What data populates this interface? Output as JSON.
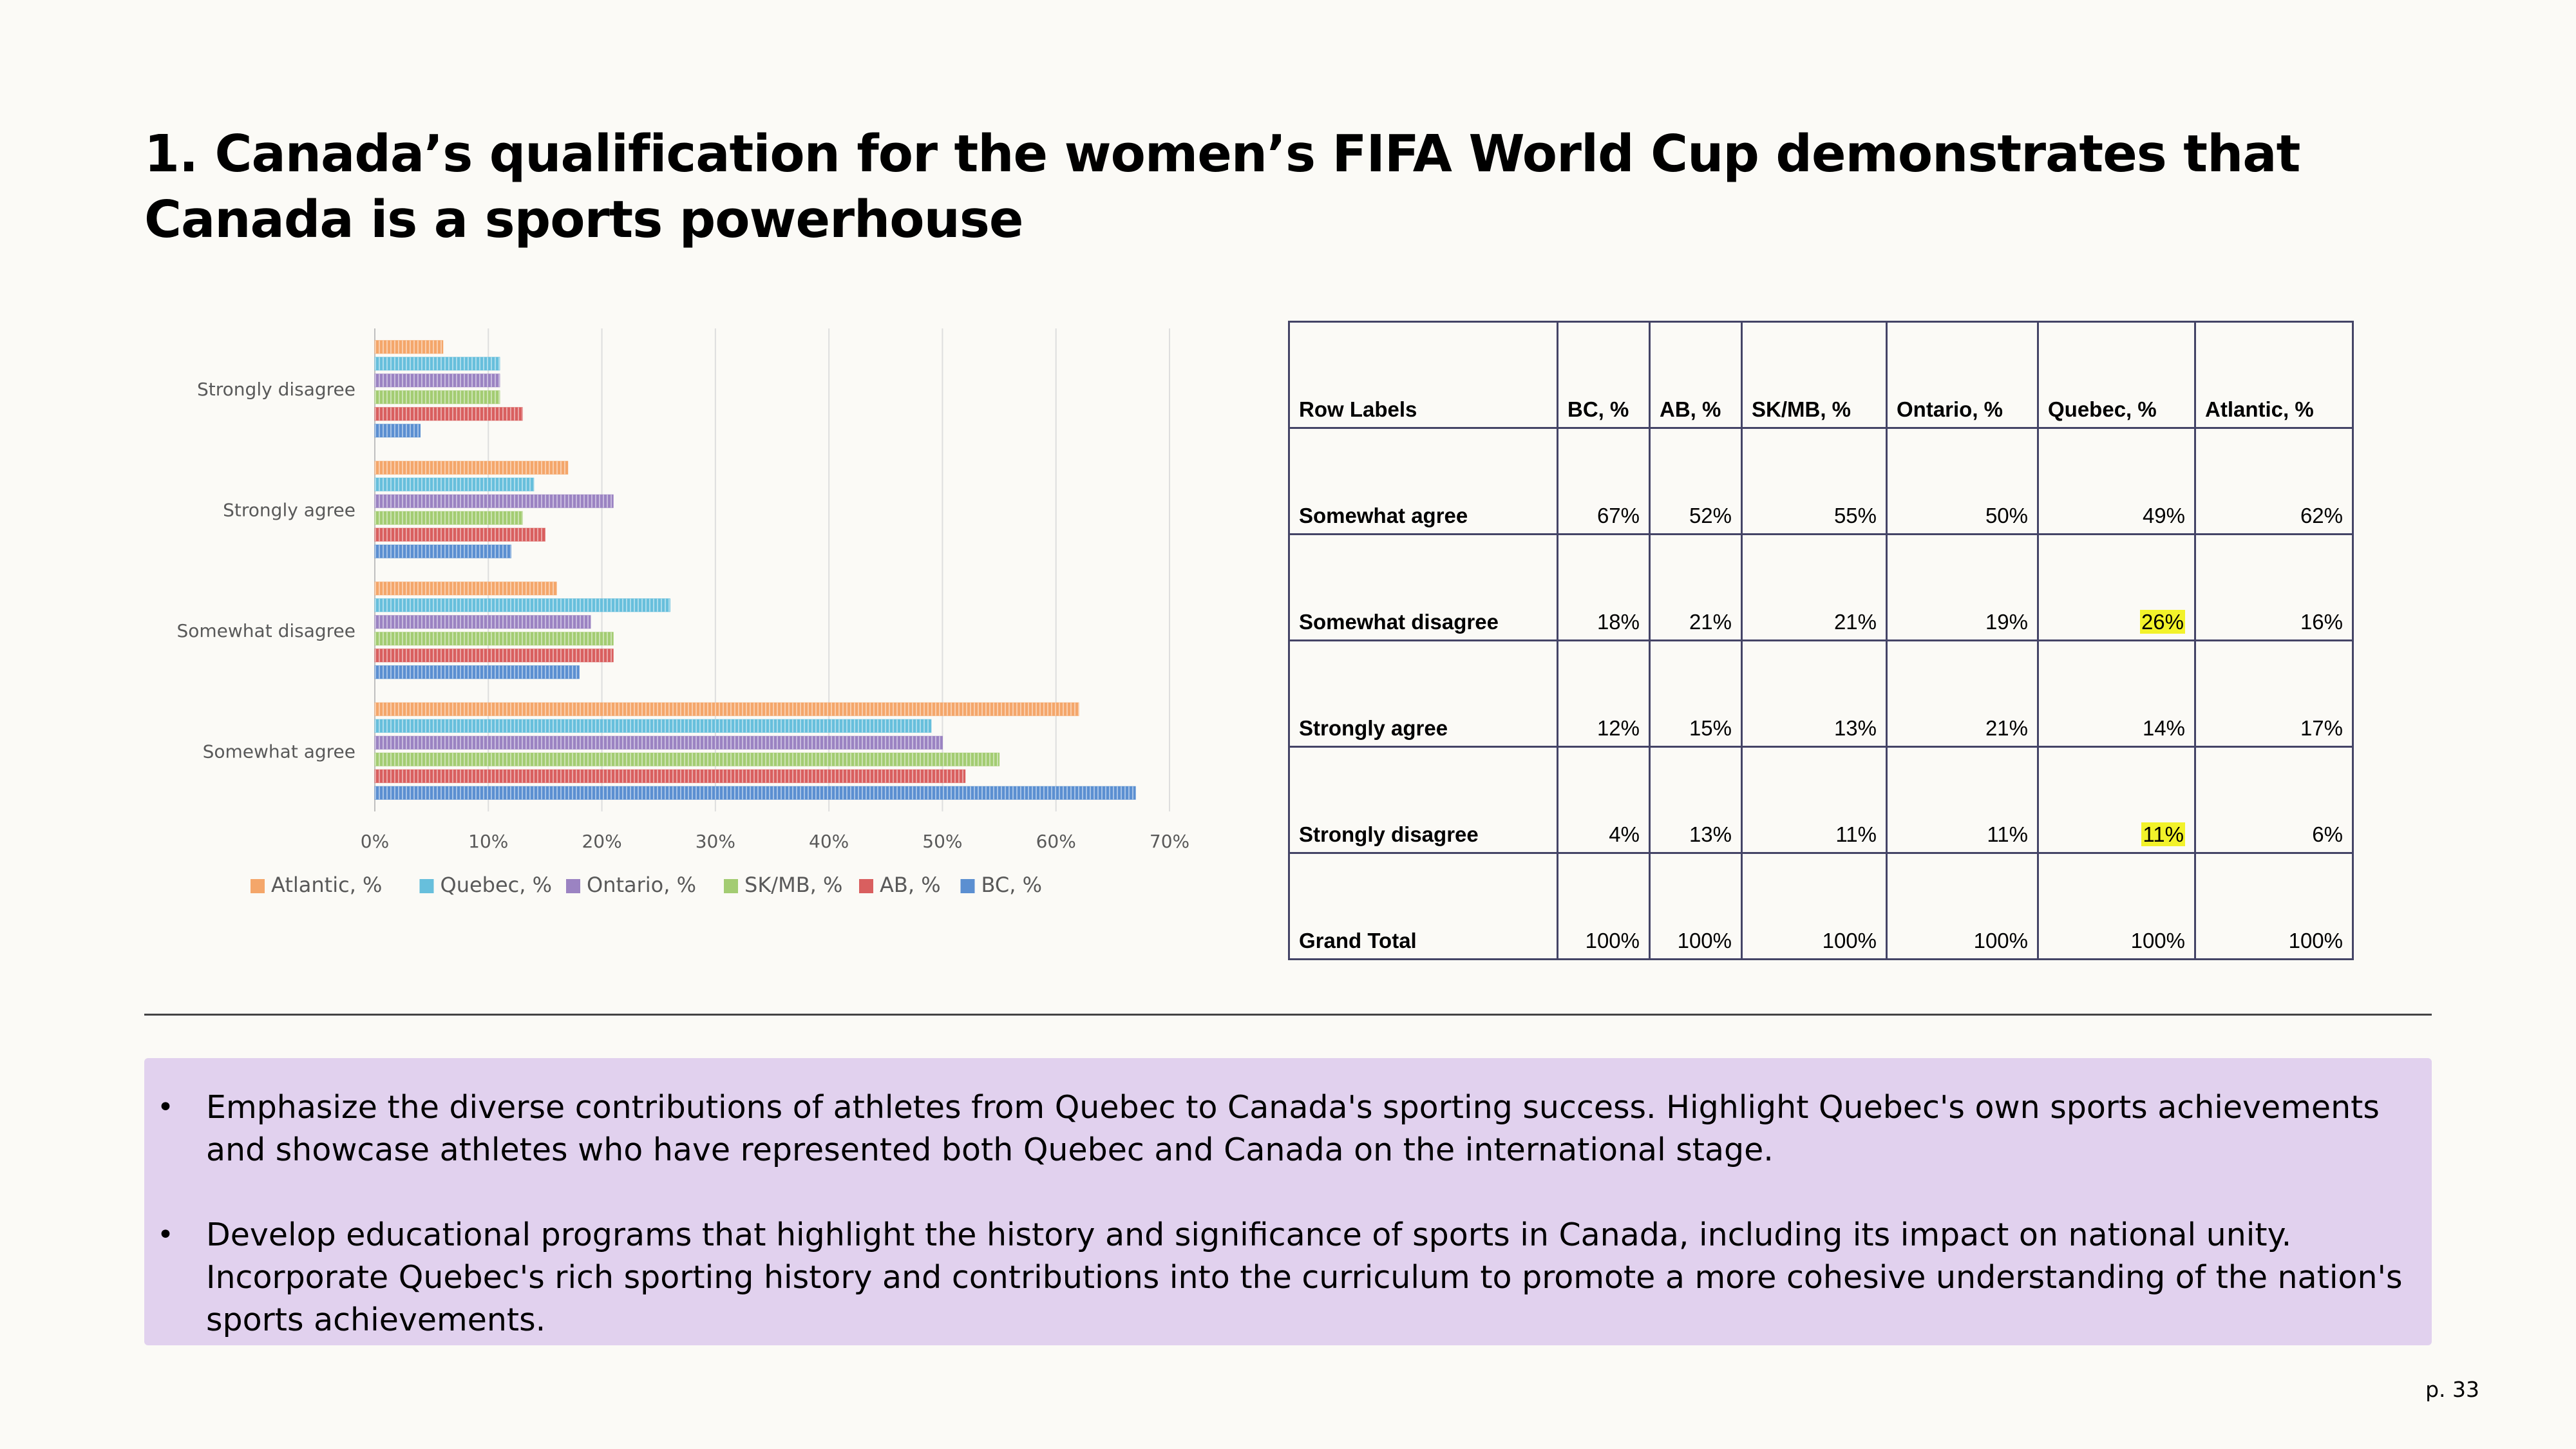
{
  "title": "1. Canada’s qualification for the women’s FIFA World Cup demonstrates that Canada is a sports powerhouse",
  "chart_data": {
    "type": "bar",
    "orientation": "horizontal",
    "categories": [
      "Strongly disagree",
      "Strongly agree",
      "Somewhat disagree",
      "Somewhat agree"
    ],
    "series": [
      {
        "name": "Atlantic, %",
        "color": "#f4a66a",
        "values": [
          6,
          17,
          16,
          62
        ]
      },
      {
        "name": "Quebec, %",
        "color": "#67bfdc",
        "values": [
          11,
          14,
          26,
          49
        ]
      },
      {
        "name": "Ontario, %",
        "color": "#9b83c2",
        "values": [
          11,
          21,
          19,
          50
        ]
      },
      {
        "name": "SK/MB, %",
        "color": "#a3cc72",
        "values": [
          11,
          13,
          21,
          55
        ]
      },
      {
        "name": "AB, %",
        "color": "#d95f5f",
        "values": [
          13,
          15,
          21,
          52
        ]
      },
      {
        "name": "BC, %",
        "color": "#5b8fd1",
        "values": [
          4,
          12,
          18,
          67
        ]
      }
    ],
    "xlim": [
      0,
      70
    ],
    "xticks": [
      "0%",
      "10%",
      "20%",
      "30%",
      "40%",
      "50%",
      "60%",
      "70%"
    ],
    "grid": true,
    "legend_position": "bottom"
  },
  "table": {
    "headers": [
      "Row Labels",
      "BC, %",
      "AB, %",
      "SK/MB, %",
      "Ontario, %",
      "Quebec, %",
      "Atlantic, %"
    ],
    "rows": [
      {
        "label": "Somewhat agree",
        "cells": [
          "67%",
          "52%",
          "55%",
          "50%",
          "49%",
          "62%"
        ],
        "highlight": [
          false,
          false,
          false,
          false,
          false,
          false
        ]
      },
      {
        "label": "Somewhat disagree",
        "cells": [
          "18%",
          "21%",
          "21%",
          "19%",
          "26%",
          "16%"
        ],
        "highlight": [
          false,
          false,
          false,
          false,
          true,
          false
        ]
      },
      {
        "label": "Strongly agree",
        "cells": [
          "12%",
          "15%",
          "13%",
          "21%",
          "14%",
          "17%"
        ],
        "highlight": [
          false,
          false,
          false,
          false,
          false,
          false
        ]
      },
      {
        "label": "Strongly disagree",
        "cells": [
          "4%",
          "13%",
          "11%",
          "11%",
          "11%",
          "6%"
        ],
        "highlight": [
          false,
          false,
          false,
          false,
          true,
          false
        ]
      },
      {
        "label": "Grand Total",
        "cells": [
          "100%",
          "100%",
          "100%",
          "100%",
          "100%",
          "100%"
        ],
        "highlight": [
          false,
          false,
          false,
          false,
          false,
          false
        ]
      }
    ],
    "highlight_color": "#f2f22a"
  },
  "notes": [
    "Emphasize the diverse contributions of athletes from Quebec to Canada's sporting success. Highlight Quebec's own sports achievements and showcase athletes who have represented both Quebec and Canada on the international stage.",
    "Develop educational programs that highlight the history and significance of sports in Canada, including its impact on national unity. Incorporate Quebec's rich sporting history and contributions into the curriculum to promote a more cohesive understanding of the nation's sports achievements."
  ],
  "page_number": "p. 33"
}
